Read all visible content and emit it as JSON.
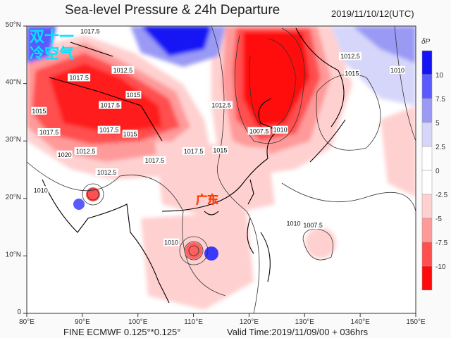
{
  "title": "Sea-level Pressure & 24h Departure",
  "datetime": "2019/11/10/12(UTC)",
  "annotation_cold_air": "双十一冷空气",
  "annotation_region": "广东",
  "footer_model": "FINE ECMWF 0.125°*0.125°",
  "footer_valid": "Valid Time:2019/11/09/00 + 036hrs",
  "map": {
    "lon_range": [
      80,
      150
    ],
    "lat_range": [
      0,
      50
    ],
    "lon_ticks": [
      "80°E",
      "90°E",
      "100°E",
      "110°E",
      "120°E",
      "130°E",
      "140°E",
      "150°E"
    ],
    "lat_ticks": [
      "0",
      "10°N",
      "20°N",
      "30°N",
      "40°N",
      "50°N"
    ]
  },
  "colorbar": {
    "label": "δP",
    "tick_labels": [
      "10",
      "7.5",
      "5",
      "2.5",
      "0",
      "-2.5",
      "-5",
      "-7.5",
      "-10"
    ],
    "colors": [
      "#1414f5",
      "#5a5aff",
      "#9a9af5",
      "#d6d6fa",
      "#ffffff",
      "#ffffff",
      "#ffd0d0",
      "#ff9a9a",
      "#ff5050",
      "#ff0a0a"
    ]
  },
  "contour_labels": [
    {
      "text": "1017.5",
      "lon": 91.4,
      "lat": 49.1
    },
    {
      "text": "1012.5",
      "lon": 97.3,
      "lat": 42.3
    },
    {
      "text": "1017.5",
      "lon": 89.4,
      "lat": 41
    },
    {
      "text": "1015",
      "lon": 99.2,
      "lat": 38
    },
    {
      "text": "1015",
      "lon": 82.2,
      "lat": 35.2
    },
    {
      "text": "1017.5",
      "lon": 95,
      "lat": 36.2
    },
    {
      "text": "1017.5",
      "lon": 84,
      "lat": 31.5
    },
    {
      "text": "1017.5",
      "lon": 94.8,
      "lat": 31.9
    },
    {
      "text": "1015",
      "lon": 98.6,
      "lat": 31.2
    },
    {
      "text": "1012.5",
      "lon": 90.6,
      "lat": 28.2
    },
    {
      "text": "1020",
      "lon": 86.8,
      "lat": 27.6
    },
    {
      "text": "1017.5",
      "lon": 103,
      "lat": 26.6
    },
    {
      "text": "1012.5",
      "lon": 94.4,
      "lat": 24.5
    },
    {
      "text": "1012.5",
      "lon": 115,
      "lat": 36.2
    },
    {
      "text": "1015",
      "lon": 114.8,
      "lat": 28.4
    },
    {
      "text": "1017.5",
      "lon": 110,
      "lat": 28.2
    },
    {
      "text": "1007.5",
      "lon": 121.8,
      "lat": 31.7
    },
    {
      "text": "1010",
      "lon": 125.6,
      "lat": 31.9
    },
    {
      "text": "1012.5",
      "lon": 138.2,
      "lat": 44.7
    },
    {
      "text": "1015",
      "lon": 138.5,
      "lat": 41.7
    },
    {
      "text": "1010",
      "lon": 146.7,
      "lat": 42.3
    },
    {
      "text": "1010",
      "lon": 82.5,
      "lat": 21.4
    },
    {
      "text": "1010",
      "lon": 128,
      "lat": 15.6
    },
    {
      "text": "1007.5",
      "lon": 131.5,
      "lat": 15.3
    },
    {
      "text": "1010",
      "lon": 106,
      "lat": 12.3
    }
  ]
}
